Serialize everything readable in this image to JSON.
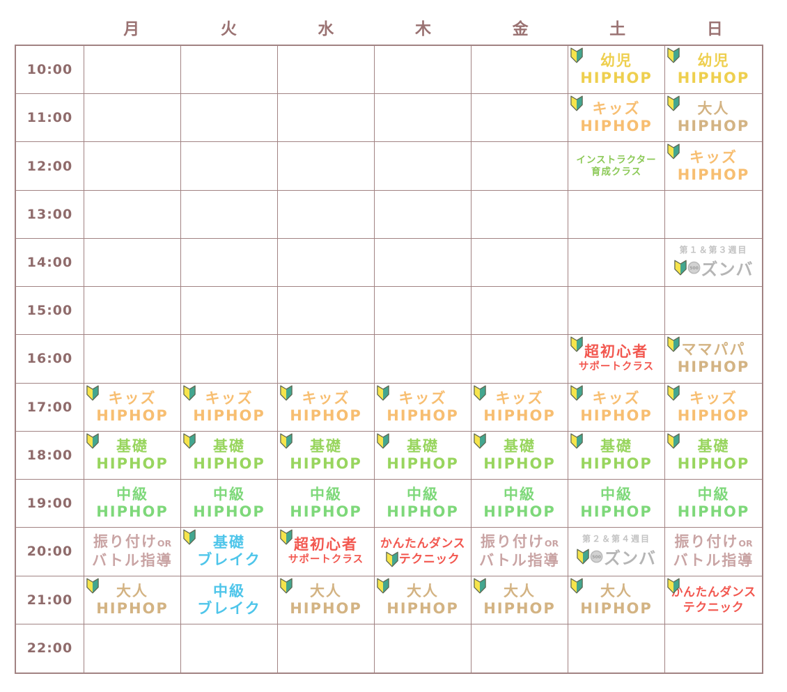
{
  "palette": {
    "grid_border": "#a18282",
    "header_text": "#9a7272",
    "time_text": "#8f6b6b",
    "yellow": "#eecf4e",
    "orange": "#f7be71",
    "tan": "#d3b383",
    "green_basic": "#98d55e",
    "green_mid": "#7ed87a",
    "green_instructor": "#8cc957",
    "red": "#f2574f",
    "blue": "#4ec5ea",
    "gray_zumba": "#b5b5b5",
    "gray_week": "#c3c3c3",
    "mauve": "#c9a4a4",
    "mark_yellow": "#f6e44c",
    "mark_teal": "#43a68f",
    "mark_outline": "#5d6650",
    "coin_fill": "#d2d2d2",
    "coin_edge": "#b9b9b9",
    "coin_text": "#9d9d9d"
  },
  "icons": {
    "beginner_mark": "shoshinsha-beginner-mark",
    "coin": "500-yen-coin"
  },
  "days": [
    "月",
    "火",
    "水",
    "木",
    "金",
    "土",
    "日"
  ],
  "times": [
    "10:00",
    "11:00",
    "12:00",
    "13:00",
    "14:00",
    "15:00",
    "16:00",
    "17:00",
    "18:00",
    "19:00",
    "20:00",
    "21:00",
    "22:00"
  ],
  "coin_value": "500",
  "classes": [
    {
      "time": "10:00",
      "day": 5,
      "color": "yellow",
      "mark": "tl",
      "lines": [
        {
          "t": "幼児",
          "s": "lg"
        },
        {
          "t": "HIPHOP",
          "s": "lg"
        }
      ]
    },
    {
      "time": "10:00",
      "day": 6,
      "color": "yellow",
      "mark": "tl",
      "lines": [
        {
          "t": "幼児",
          "s": "lg"
        },
        {
          "t": "HIPHOP",
          "s": "lg"
        }
      ]
    },
    {
      "time": "11:00",
      "day": 5,
      "color": "orange",
      "mark": "tl",
      "lines": [
        {
          "t": "キッズ",
          "s": "lg"
        },
        {
          "t": "HIPHOP",
          "s": "lg"
        }
      ]
    },
    {
      "time": "11:00",
      "day": 6,
      "color": "tan",
      "mark": "tl",
      "lines": [
        {
          "t": "大人",
          "s": "lg"
        },
        {
          "t": "HIPHOP",
          "s": "lg"
        }
      ]
    },
    {
      "time": "12:00",
      "day": 5,
      "color": "green_instructor",
      "mark": null,
      "lines": [
        {
          "t": "インストラクター",
          "s": "xs"
        },
        {
          "t": "育成クラス",
          "s": "xs"
        }
      ]
    },
    {
      "time": "12:00",
      "day": 6,
      "color": "orange",
      "mark": "tl",
      "lines": [
        {
          "t": "キッズ",
          "s": "lg"
        },
        {
          "t": "HIPHOP",
          "s": "lg"
        }
      ]
    },
    {
      "time": "14:00",
      "day": 6,
      "color": "gray_zumba",
      "variant": "zumba",
      "week": "第１＆第３週目",
      "title": "ズンバ"
    },
    {
      "time": "16:00",
      "day": 5,
      "color": "red",
      "mark": "tl",
      "lines": [
        {
          "t": "超初心者",
          "s": "lg"
        },
        {
          "t": "サポートクラス",
          "s": "sm"
        }
      ]
    },
    {
      "time": "16:00",
      "day": 6,
      "color": "tan",
      "mark": "tl",
      "lines": [
        {
          "t": "ママパパ",
          "s": "lg"
        },
        {
          "t": "HIPHOP",
          "s": "lg"
        }
      ]
    },
    {
      "time": "17:00",
      "day": 0,
      "color": "orange",
      "mark": "tl",
      "lines": [
        {
          "t": "キッズ",
          "s": "lg"
        },
        {
          "t": "HIPHOP",
          "s": "lg"
        }
      ]
    },
    {
      "time": "17:00",
      "day": 1,
      "color": "orange",
      "mark": "tl",
      "lines": [
        {
          "t": "キッズ",
          "s": "lg"
        },
        {
          "t": "HIPHOP",
          "s": "lg"
        }
      ]
    },
    {
      "time": "17:00",
      "day": 2,
      "color": "orange",
      "mark": "tl",
      "lines": [
        {
          "t": "キッズ",
          "s": "lg"
        },
        {
          "t": "HIPHOP",
          "s": "lg"
        }
      ]
    },
    {
      "time": "17:00",
      "day": 3,
      "color": "orange",
      "mark": "tl",
      "lines": [
        {
          "t": "キッズ",
          "s": "lg"
        },
        {
          "t": "HIPHOP",
          "s": "lg"
        }
      ]
    },
    {
      "time": "17:00",
      "day": 4,
      "color": "orange",
      "mark": "tl",
      "lines": [
        {
          "t": "キッズ",
          "s": "lg"
        },
        {
          "t": "HIPHOP",
          "s": "lg"
        }
      ]
    },
    {
      "time": "17:00",
      "day": 5,
      "color": "orange",
      "mark": "tl",
      "lines": [
        {
          "t": "キッズ",
          "s": "lg"
        },
        {
          "t": "HIPHOP",
          "s": "lg"
        }
      ]
    },
    {
      "time": "17:00",
      "day": 6,
      "color": "orange",
      "mark": "tl",
      "lines": [
        {
          "t": "キッズ",
          "s": "lg"
        },
        {
          "t": "HIPHOP",
          "s": "lg"
        }
      ]
    },
    {
      "time": "18:00",
      "day": 0,
      "color": "green_basic",
      "mark": "tl",
      "lines": [
        {
          "t": "基礎",
          "s": "lg"
        },
        {
          "t": "HIPHOP",
          "s": "lg"
        }
      ]
    },
    {
      "time": "18:00",
      "day": 1,
      "color": "green_basic",
      "mark": "tl",
      "lines": [
        {
          "t": "基礎",
          "s": "lg"
        },
        {
          "t": "HIPHOP",
          "s": "lg"
        }
      ]
    },
    {
      "time": "18:00",
      "day": 2,
      "color": "green_basic",
      "mark": "tl",
      "lines": [
        {
          "t": "基礎",
          "s": "lg"
        },
        {
          "t": "HIPHOP",
          "s": "lg"
        }
      ]
    },
    {
      "time": "18:00",
      "day": 3,
      "color": "green_basic",
      "mark": "tl",
      "lines": [
        {
          "t": "基礎",
          "s": "lg"
        },
        {
          "t": "HIPHOP",
          "s": "lg"
        }
      ]
    },
    {
      "time": "18:00",
      "day": 4,
      "color": "green_basic",
      "mark": "tl",
      "lines": [
        {
          "t": "基礎",
          "s": "lg"
        },
        {
          "t": "HIPHOP",
          "s": "lg"
        }
      ]
    },
    {
      "time": "18:00",
      "day": 5,
      "color": "green_basic",
      "mark": "tl",
      "lines": [
        {
          "t": "基礎",
          "s": "lg"
        },
        {
          "t": "HIPHOP",
          "s": "lg"
        }
      ]
    },
    {
      "time": "18:00",
      "day": 6,
      "color": "green_basic",
      "mark": "tl",
      "lines": [
        {
          "t": "基礎",
          "s": "lg"
        },
        {
          "t": "HIPHOP",
          "s": "lg"
        }
      ]
    },
    {
      "time": "19:00",
      "day": 0,
      "color": "green_mid",
      "mark": null,
      "lines": [
        {
          "t": "中級",
          "s": "lg"
        },
        {
          "t": "HIPHOP",
          "s": "lg"
        }
      ]
    },
    {
      "time": "19:00",
      "day": 1,
      "color": "green_mid",
      "mark": null,
      "lines": [
        {
          "t": "中級",
          "s": "lg"
        },
        {
          "t": "HIPHOP",
          "s": "lg"
        }
      ]
    },
    {
      "time": "19:00",
      "day": 2,
      "color": "green_mid",
      "mark": null,
      "lines": [
        {
          "t": "中級",
          "s": "lg"
        },
        {
          "t": "HIPHOP",
          "s": "lg"
        }
      ]
    },
    {
      "time": "19:00",
      "day": 3,
      "color": "green_mid",
      "mark": null,
      "lines": [
        {
          "t": "中級",
          "s": "lg"
        },
        {
          "t": "HIPHOP",
          "s": "lg"
        }
      ]
    },
    {
      "time": "19:00",
      "day": 4,
      "color": "green_mid",
      "mark": null,
      "lines": [
        {
          "t": "中級",
          "s": "lg"
        },
        {
          "t": "HIPHOP",
          "s": "lg"
        }
      ]
    },
    {
      "time": "19:00",
      "day": 5,
      "color": "green_mid",
      "mark": null,
      "lines": [
        {
          "t": "中級",
          "s": "lg"
        },
        {
          "t": "HIPHOP",
          "s": "lg"
        }
      ]
    },
    {
      "time": "19:00",
      "day": 6,
      "color": "green_mid",
      "mark": null,
      "lines": [
        {
          "t": "中級",
          "s": "lg"
        },
        {
          "t": "HIPHOP",
          "s": "lg"
        }
      ]
    },
    {
      "time": "20:00",
      "day": 0,
      "color": "mauve",
      "variant": "furitsuke",
      "l1": "振り付け",
      "or": "OR",
      "l2": "バトル指導"
    },
    {
      "time": "20:00",
      "day": 1,
      "color": "blue",
      "mark": "tl",
      "lines": [
        {
          "t": "基礎",
          "s": "lg"
        },
        {
          "t": "ブレイク",
          "s": "lg"
        }
      ]
    },
    {
      "time": "20:00",
      "day": 2,
      "color": "red",
      "mark": "tl",
      "lines": [
        {
          "t": "超初心者",
          "s": "lg"
        },
        {
          "t": "サポートクラス",
          "s": "sm"
        }
      ]
    },
    {
      "time": "20:00",
      "day": 3,
      "color": "red",
      "mark": "l2",
      "lines": [
        {
          "t": "かんたんダンス",
          "s": "md"
        },
        {
          "t": "テクニック",
          "s": "md"
        }
      ]
    },
    {
      "time": "20:00",
      "day": 4,
      "color": "mauve",
      "variant": "furitsuke",
      "l1": "振り付け",
      "or": "OR",
      "l2": "バトル指導"
    },
    {
      "time": "20:00",
      "day": 5,
      "color": "gray_zumba",
      "variant": "zumba",
      "week": "第２＆第４週目",
      "title": "ズンバ"
    },
    {
      "time": "20:00",
      "day": 6,
      "color": "mauve",
      "variant": "furitsuke",
      "l1": "振り付け",
      "or": "OR",
      "l2": "バトル指導"
    },
    {
      "time": "21:00",
      "day": 0,
      "color": "tan",
      "mark": "tl",
      "lines": [
        {
          "t": "大人",
          "s": "lg"
        },
        {
          "t": "HIPHOP",
          "s": "lg"
        }
      ]
    },
    {
      "time": "21:00",
      "day": 1,
      "color": "blue",
      "mark": null,
      "lines": [
        {
          "t": "中級",
          "s": "lg"
        },
        {
          "t": "ブレイク",
          "s": "lg"
        }
      ]
    },
    {
      "time": "21:00",
      "day": 2,
      "color": "tan",
      "mark": "tl",
      "lines": [
        {
          "t": "大人",
          "s": "lg"
        },
        {
          "t": "HIPHOP",
          "s": "lg"
        }
      ]
    },
    {
      "time": "21:00",
      "day": 3,
      "color": "tan",
      "mark": "tl",
      "lines": [
        {
          "t": "大人",
          "s": "lg"
        },
        {
          "t": "HIPHOP",
          "s": "lg"
        }
      ]
    },
    {
      "time": "21:00",
      "day": 4,
      "color": "tan",
      "mark": "tl",
      "lines": [
        {
          "t": "大人",
          "s": "lg"
        },
        {
          "t": "HIPHOP",
          "s": "lg"
        }
      ]
    },
    {
      "time": "21:00",
      "day": 5,
      "color": "tan",
      "mark": "tl",
      "lines": [
        {
          "t": "大人",
          "s": "lg"
        },
        {
          "t": "HIPHOP",
          "s": "lg"
        }
      ]
    },
    {
      "time": "21:00",
      "day": 6,
      "color": "red",
      "mark": "tl",
      "lines": [
        {
          "t": "かんたんダンス",
          "s": "md"
        },
        {
          "t": "テクニック",
          "s": "md"
        }
      ]
    }
  ]
}
